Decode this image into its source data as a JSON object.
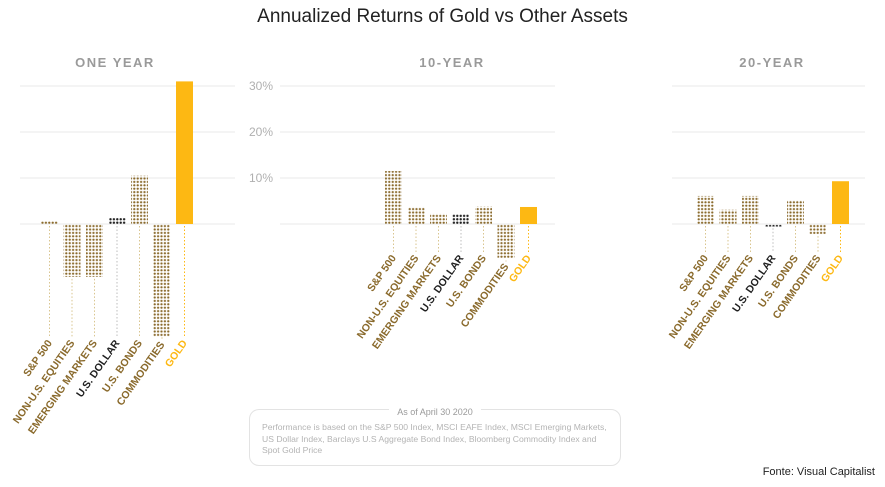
{
  "title": "Annualized Returns of Gold vs Other Assets",
  "note": {
    "date": "As of April 30 2020",
    "text": "Performance is based on the S&P 500 Index, MSCI EAFE Index, MSCI Emerging Markets, US Dollar Index, Barclays U.S Aggregate Bond Index, Bloomberg Commodity Index and Spot Gold Price"
  },
  "source": "Fonte: Visual Capitalist",
  "colors": {
    "dotted_asset": "#8a6a2c",
    "dollar": "#1f1f1f",
    "gold": "#fdb813",
    "grid": "#e8e8e8",
    "tick_text": "#b0b0b0"
  },
  "chart_data": {
    "type": "bar",
    "y_ticks": [
      "10%",
      "20%",
      "30%"
    ],
    "ylim": [
      -25,
      32
    ],
    "grid": true,
    "panels": [
      {
        "title": "ONE YEAR",
        "categories": [
          "S&P 500",
          "NON-U.S. EQUITIES",
          "EMERGING MARKETS",
          "U.S. DOLLAR",
          "U.S. BONDS",
          "COMMODITIES",
          "GOLD"
        ],
        "values": [
          0.6,
          -11.5,
          -11.5,
          1.3,
          10.5,
          -24.5,
          31
        ]
      },
      {
        "title": "10-YEAR",
        "categories": [
          "S&P 500",
          "NON-U.S. EQUITIES",
          "EMERGING MARKETS",
          "U.S. DOLLAR",
          "U.S. BONDS",
          "COMMODITIES",
          "GOLD"
        ],
        "values": [
          11.5,
          3.7,
          2.2,
          2.1,
          3.8,
          -7.5,
          3.7
        ]
      },
      {
        "title": "20-YEAR",
        "categories": [
          "S&P 500",
          "NON-U.S. EQUITIES",
          "EMERGING MARKETS",
          "U.S. DOLLAR",
          "U.S. BONDS",
          "COMMODITIES",
          "GOLD"
        ],
        "values": [
          6.1,
          3.1,
          6.1,
          -0.5,
          5.2,
          -2.2,
          9.3
        ]
      }
    ]
  }
}
